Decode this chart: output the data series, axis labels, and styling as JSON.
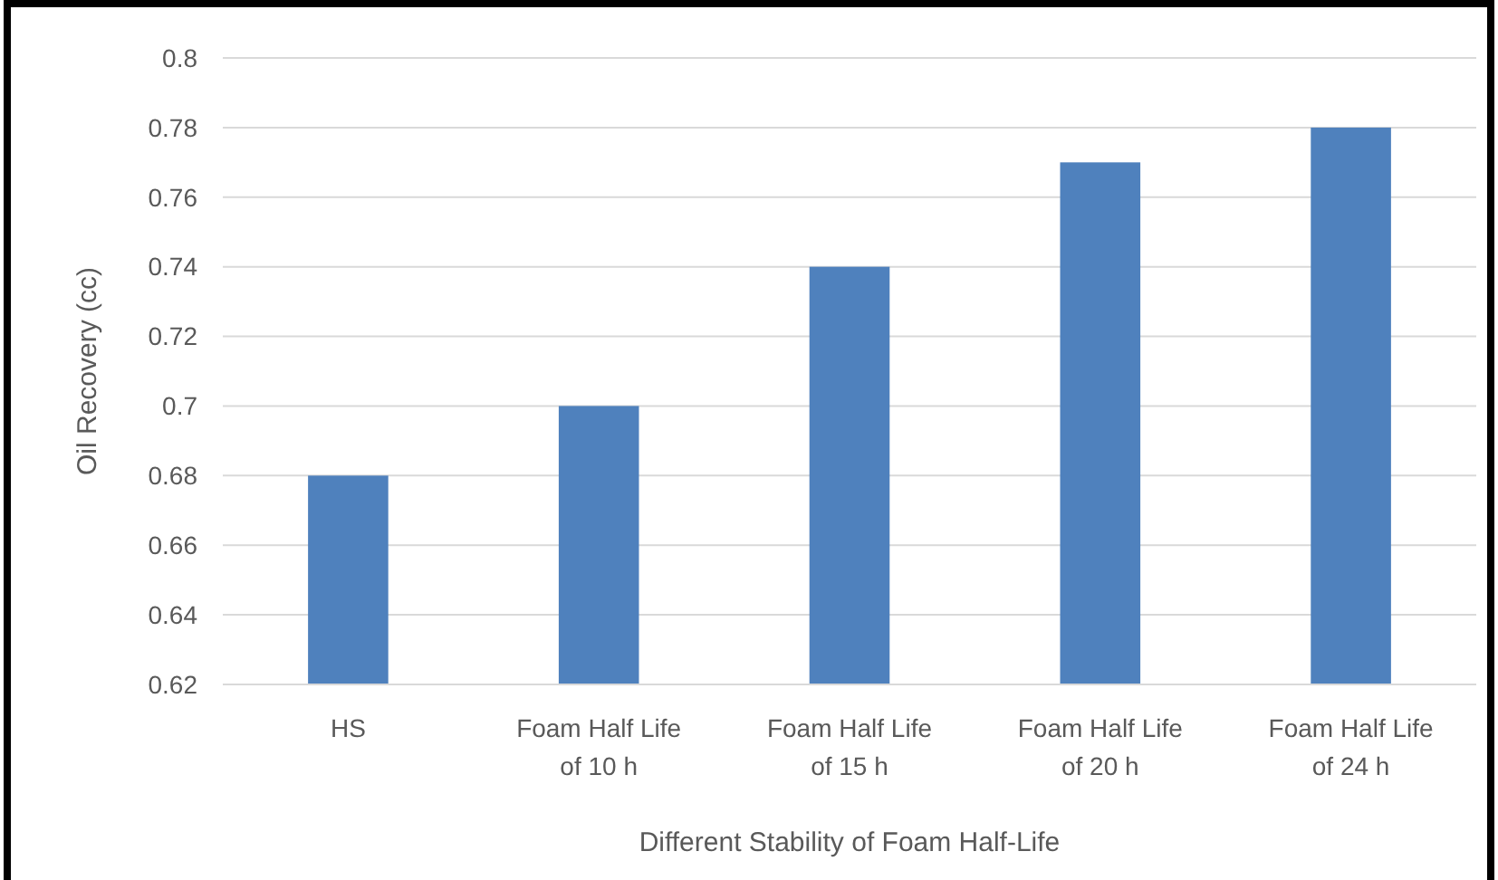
{
  "chart_data": {
    "type": "bar",
    "xlabel": "Different Stability of Foam Half-Life",
    "ylabel": "Oil Recovery (cc)",
    "categories": [
      "HS",
      "Foam Half Life of 10 h",
      "Foam Half Life of 15 h",
      "Foam Half Life of 20 h",
      "Foam Half Life of 24 h"
    ],
    "values": [
      0.68,
      0.7,
      0.74,
      0.77,
      0.78
    ],
    "color": "#4f81bd",
    "ylim": [
      0.62,
      0.8
    ],
    "yticks": [
      0.62,
      0.64,
      0.66,
      0.68,
      0.7,
      0.72,
      0.74,
      0.76,
      0.78,
      0.8
    ],
    "grid": "y"
  }
}
